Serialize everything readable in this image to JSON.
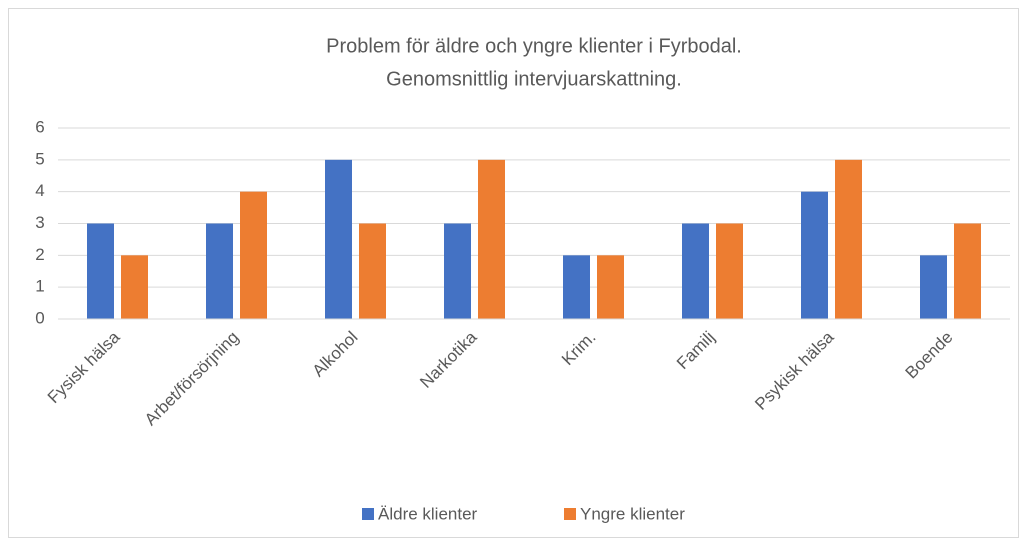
{
  "chart_data": {
    "type": "bar",
    "title": [
      "Problem för äldre och yngre klienter i Fyrbodal.",
      "Genomsnittlig intervjuarskattning."
    ],
    "categories": [
      "Fysisk hälsa",
      "Arbet/försörjning",
      "Alkohol",
      "Narkotika",
      "Krim.",
      "Familj",
      "Psykisk hälsa",
      "Boende"
    ],
    "series": [
      {
        "name": "Äldre klienter",
        "color": "#4472c4",
        "values": [
          3,
          3,
          5,
          3,
          2,
          3,
          4,
          2
        ]
      },
      {
        "name": "Yngre klienter",
        "color": "#ed7d31",
        "values": [
          2,
          4,
          3,
          5,
          2,
          3,
          5,
          3
        ]
      }
    ],
    "ylim": [
      0,
      6
    ],
    "yticks": [
      0,
      1,
      2,
      3,
      4,
      5,
      6
    ],
    "grid": true,
    "legend": "bottom"
  }
}
